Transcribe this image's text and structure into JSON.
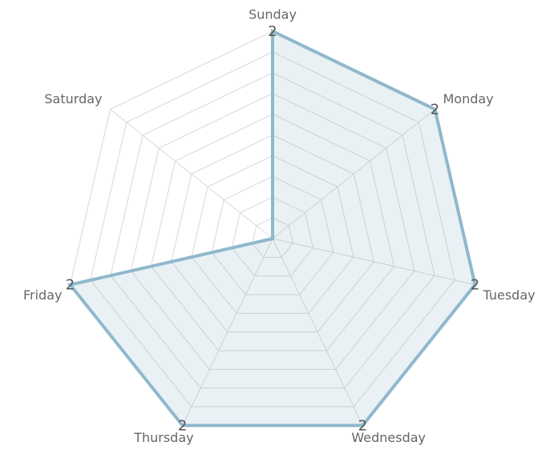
{
  "chart_data": {
    "type": "radar",
    "categories": [
      "Sunday",
      "Monday",
      "Tuesday",
      "Wednesday",
      "Thursday",
      "Friday",
      "Saturday"
    ],
    "series": [
      {
        "color": "#8fb8cc",
        "values": [
          2,
          2,
          2,
          2,
          2,
          2,
          0
        ]
      }
    ],
    "rlim": [
      0,
      2
    ],
    "rticks": [
      0,
      0.2,
      0.4,
      0.6,
      0.8,
      1,
      1.2,
      1.4,
      1.6,
      1.8,
      2
    ],
    "grid": true
  }
}
